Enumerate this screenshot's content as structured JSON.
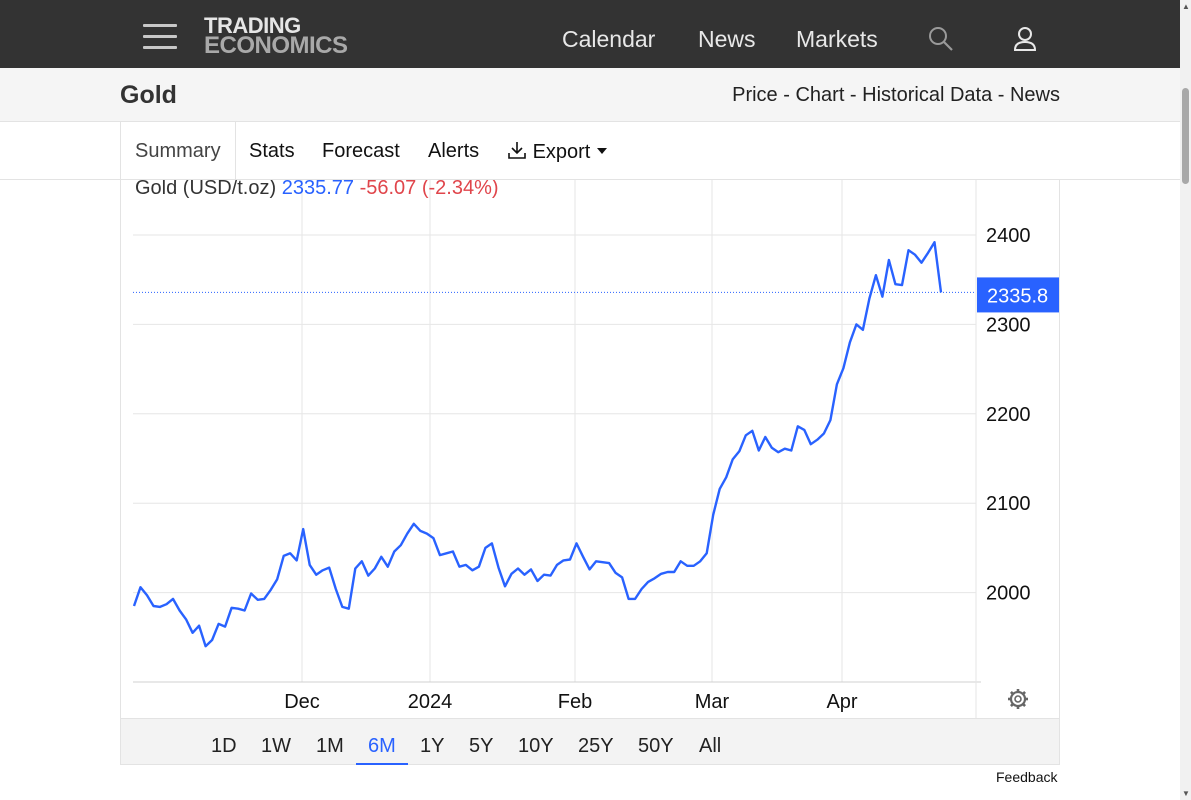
{
  "nav": {
    "logo_line1": "TRADING",
    "logo_line2": "ECONOMICS",
    "items": [
      "Calendar",
      "News",
      "Markets"
    ]
  },
  "page": {
    "title": "Gold",
    "links": [
      "Price",
      "Chart",
      "Historical Data",
      "News"
    ],
    "link_separator": " - "
  },
  "tabs": [
    "Summary",
    "Stats",
    "Forecast",
    "Alerts",
    "Export"
  ],
  "quote": {
    "name": "Gold (USD/t.oz)",
    "price": "2335.77",
    "change": "-56.07 (-2.34%)",
    "price_color": "#2962ff",
    "change_color": "#e0454b"
  },
  "ranges": [
    "1D",
    "1W",
    "1M",
    "6M",
    "1Y",
    "5Y",
    "10Y",
    "25Y",
    "50Y",
    "All"
  ],
  "active_range": "6M",
  "feedback": "Feedback",
  "chart_data": {
    "type": "line",
    "series": [
      {
        "values": [
          1985,
          2006,
          1997,
          1985,
          1984,
          1987,
          1993,
          1980,
          1970,
          1955,
          1963,
          1940,
          1947,
          1965,
          1962,
          1983,
          1982,
          1980,
          1999,
          1992,
          1993,
          2003,
          2015,
          2041,
          2044,
          2036,
          2071,
          2031,
          2020,
          2025,
          2028,
          2004,
          1984,
          1982,
          2027,
          2035,
          2019,
          2027,
          2040,
          2029,
          2046,
          2053,
          2066,
          2077,
          2069,
          2066,
          2061,
          2042,
          2044,
          2046,
          2029,
          2031,
          2025,
          2029,
          2050,
          2055,
          2028,
          2007,
          2021,
          2027,
          2020,
          2026,
          2013,
          2020,
          2019,
          2031,
          2036,
          2037,
          2055,
          2040,
          2026,
          2035,
          2034,
          2033,
          2022,
          2017,
          1993,
          1993,
          2004,
          2012,
          2016,
          2021,
          2023,
          2023,
          2035,
          2030,
          2030,
          2035,
          2044,
          2087,
          2116,
          2129,
          2149,
          2158,
          2176,
          2181,
          2159,
          2174,
          2162,
          2157,
          2161,
          2159,
          2186,
          2182,
          2166,
          2171,
          2178,
          2193,
          2233,
          2251,
          2280,
          2300,
          2294,
          2329,
          2355,
          2331,
          2372,
          2345,
          2344,
          2383,
          2378,
          2369,
          2380,
          2392,
          2335.77
        ],
        "color": "#2962ff"
      }
    ],
    "x_ticks": [
      "Dec",
      "2024",
      "Feb",
      "Mar",
      "Apr"
    ],
    "y_ticks": [
      2000,
      2100,
      2200,
      2300,
      2400
    ],
    "ylim": [
      1900,
      2450
    ],
    "last_value_label": "2335.8",
    "grid": true,
    "y_axis_position": "right"
  }
}
